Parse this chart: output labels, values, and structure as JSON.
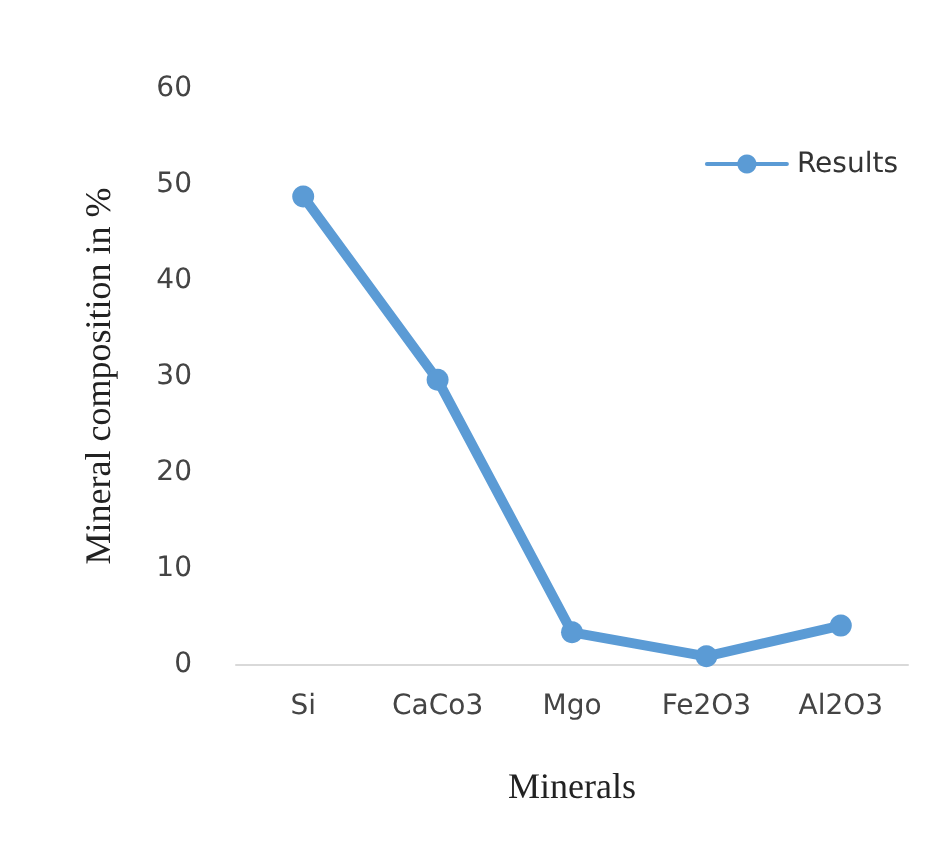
{
  "chart_data": {
    "type": "line",
    "xlabel": "Minerals",
    "ylabel": "Mineral composition in %",
    "categories": [
      "Si",
      "CaCo3",
      "Mgo",
      "Fe2O3",
      "Al2O3"
    ],
    "series": [
      {
        "name": "Results",
        "color": "#5b9bd5",
        "values": [
          48.7,
          29.6,
          3.3,
          0.8,
          4.0
        ]
      }
    ],
    "ylim": [
      0,
      60
    ],
    "yticks": [
      0,
      10,
      20,
      30,
      40,
      50,
      60
    ],
    "grid": false,
    "legend": "top right",
    "marker": "circle",
    "line_style": "solid"
  }
}
